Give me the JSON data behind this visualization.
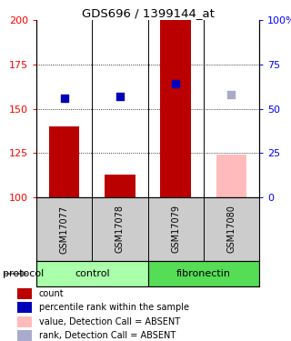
{
  "title": "GDS696 / 1399144_at",
  "samples": [
    "GSM17077",
    "GSM17078",
    "GSM17079",
    "GSM17080"
  ],
  "bar_values": [
    140,
    113,
    200,
    124
  ],
  "bar_colors": [
    "#bb0000",
    "#bb0000",
    "#bb0000",
    "#ffbbbb"
  ],
  "dot_values": [
    156,
    157,
    164,
    158
  ],
  "dot_colors": [
    "#0000bb",
    "#0000bb",
    "#0000bb",
    "#aaaacc"
  ],
  "ylim_left": [
    100,
    200
  ],
  "yticks_left": [
    100,
    125,
    150,
    175,
    200
  ],
  "yticks_right": [
    0,
    25,
    50,
    75,
    100
  ],
  "group_colors": [
    "#aaffaa",
    "#55dd55"
  ],
  "group_labels": [
    "control",
    "fibronectin"
  ],
  "group_sample_counts": [
    2,
    2
  ],
  "protocol_label": "protocol",
  "legend_items": [
    {
      "label": "count",
      "color": "#bb0000"
    },
    {
      "label": "percentile rank within the sample",
      "color": "#0000bb"
    },
    {
      "label": "value, Detection Call = ABSENT",
      "color": "#ffbbbb"
    },
    {
      "label": "rank, Detection Call = ABSENT",
      "color": "#aaaacc"
    }
  ]
}
